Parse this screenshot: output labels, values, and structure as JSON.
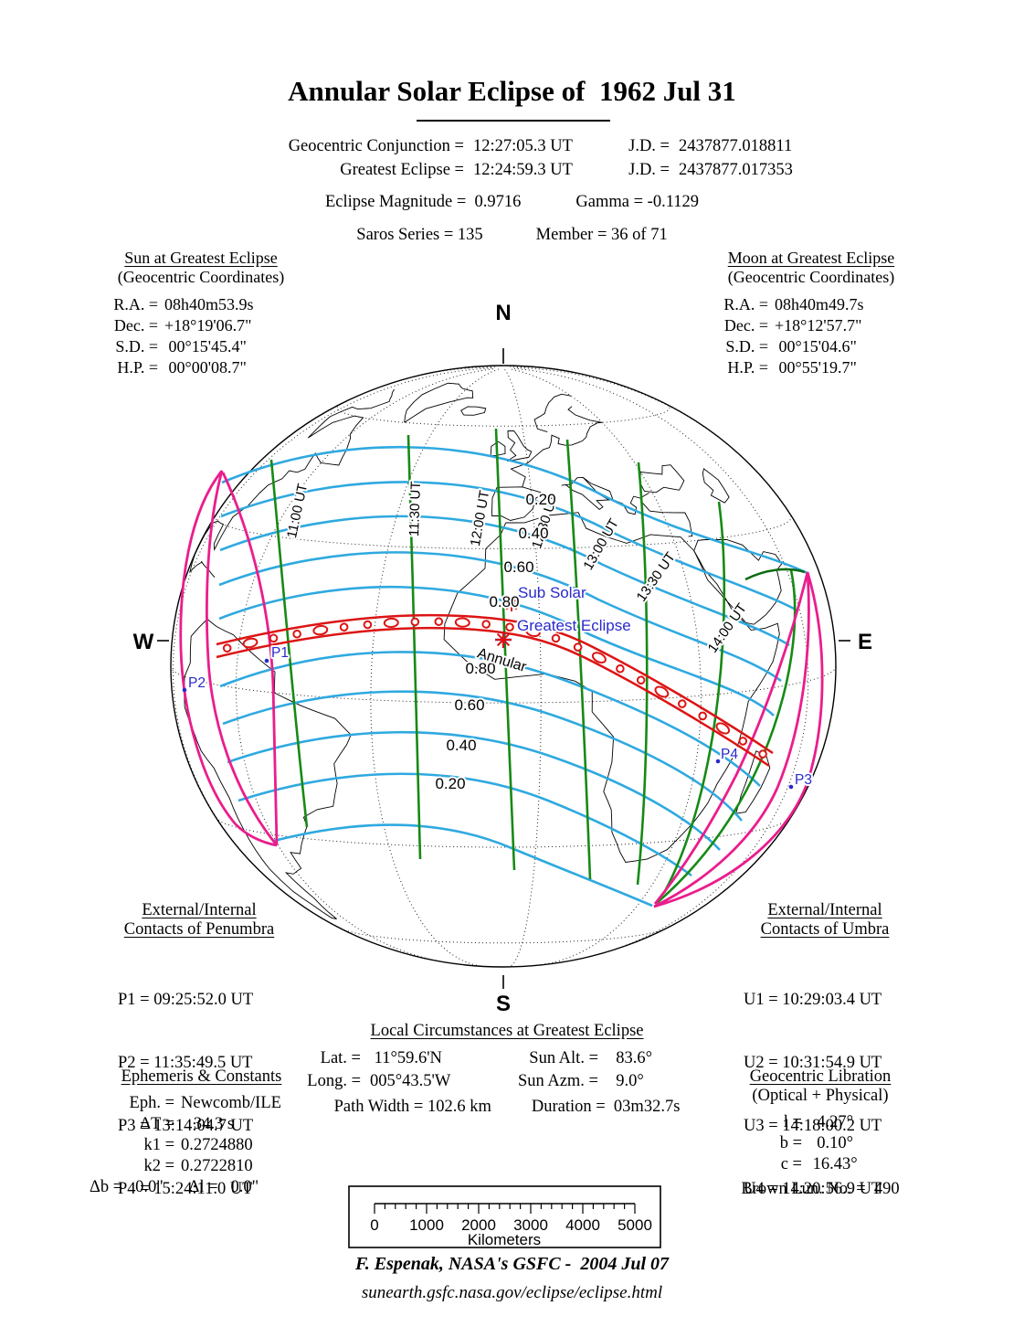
{
  "title": "Annular Solar Eclipse of  1962 Jul 31",
  "header": {
    "conj_label": "Geocentric Conjunction =",
    "conj_value": "12:27:05.3 UT",
    "jd1_label": "J.D. =",
    "jd1_value": "2437877.018811",
    "ge_label": "Greatest Eclipse =",
    "ge_value": "12:24:59.3 UT",
    "jd2_label": "J.D. =",
    "jd2_value": "2437877.017353",
    "magnitude_line": "Eclipse Magnitude =  0.9716",
    "gamma_line": "Gamma = -0.1129",
    "saros_line": "Saros Series = 135",
    "member_line": "Member = 36 of 71"
  },
  "sun": {
    "title": "Sun at Greatest Eclipse",
    "subtitle": "(Geocentric Coordinates)",
    "rows": [
      {
        "l": "R.A. =",
        "v": "08h40m53.9s"
      },
      {
        "l": "Dec. =",
        "v": "+18°19'06.7\""
      },
      {
        "l": "S.D. =",
        "v": " 00°15'45.4\""
      },
      {
        "l": "H.P. =",
        "v": " 00°00'08.7\""
      }
    ]
  },
  "moon": {
    "title": "Moon at Greatest Eclipse",
    "subtitle": "(Geocentric Coordinates)",
    "rows": [
      {
        "l": "R.A. =",
        "v": "08h40m49.7s"
      },
      {
        "l": "Dec. =",
        "v": "+18°12'57.7\""
      },
      {
        "l": "S.D. =",
        "v": " 00°15'04.6\""
      },
      {
        "l": "H.P. =",
        "v": " 00°55'19.7\""
      }
    ]
  },
  "map": {
    "north": "N",
    "south": "S",
    "east": "E",
    "west": "W",
    "sub_solar": "Sub Solar",
    "greatest_eclipse": "Greatest Eclipse",
    "annular": "Annular",
    "p1": "P1",
    "p2": "P2",
    "p3": "P3",
    "p4": "P4",
    "ut_labels": [
      "11:00 UT",
      "11:30 UT",
      "12:00 UT",
      "12:30 UT",
      "13:00 UT",
      "13:30 UT",
      "14:00 UT"
    ],
    "mag_above": [
      "0.20",
      "0.40",
      "0.60",
      "0.80"
    ],
    "mag_below": [
      "0.80",
      "0.60",
      "0.40",
      "0.20"
    ]
  },
  "penumbra": {
    "title1": "External/Internal",
    "title2": "Contacts of Penumbra",
    "rows": [
      "P1 = 09:25:52.0 UT",
      "P2 = 11:35:49.5 UT",
      "P3 = 13:14:04.7 UT",
      "P4 = 15:24:11.0 UT"
    ]
  },
  "umbra": {
    "title1": "External/Internal",
    "title2": "Contacts of Umbra",
    "rows": [
      "U1 = 10:29:03.4 UT",
      "U2 = 10:31:54.9 UT",
      "U3 = 14:18:00.2 UT",
      "U4 = 14:20:56.9 UT"
    ]
  },
  "local": {
    "title": "Local Circumstances at Greatest Eclipse",
    "lat_l": "Lat. =",
    "lat_v": " 11°59.6'N",
    "long_l": "Long. =",
    "long_v": "005°43.5'W",
    "alt_l": "Sun Alt. =",
    "alt_v": "  83.6°",
    "azm_l": "Sun Azm. =",
    "azm_v": "  9.0°",
    "path_width_line": "Path Width = 102.6 km",
    "duration_line": "Duration =  03m32.7s"
  },
  "ephemeris": {
    "title": "Ephemeris & Constants",
    "rows": [
      {
        "l": "Eph. =",
        "v": "Newcomb/ILE"
      },
      {
        "l": "ΔT =",
        "v": "   34.3 s"
      },
      {
        "l": "k1 =",
        "v": "0.2724880"
      },
      {
        "l": "k2 =",
        "v": "0.2722810"
      }
    ],
    "delta_line": "Δb =   0.0\"      Δl =   0.0\""
  },
  "libration": {
    "title": "Geocentric Libration",
    "subtitle": "(Optical + Physical)",
    "rows": [
      {
        "l": "l =",
        "v": "  4.27°"
      },
      {
        "l": "b =",
        "v": "  0.10°"
      },
      {
        "l": "c =",
        "v": " 16.43°"
      }
    ],
    "brown_line": "Brown Lun. No. =  490"
  },
  "scale_bar": {
    "ticks": [
      "0",
      "1000",
      "2000",
      "3000",
      "4000",
      "5000"
    ],
    "unit": "Kilometers"
  },
  "credit": "F. Espenak, NASA's GSFC -  2004 Jul 07",
  "url": "sunearth.gsfc.nasa.gov/eclipse/eclipse.html",
  "colors": {
    "contour_blue": "#2FA9E0",
    "ut_green": "#168A16",
    "path_red": "#DC1414",
    "limit_magenta": "#EA1D8D",
    "label_blue": "#2929CC"
  },
  "chart_data": {
    "type": "map-contour",
    "title": "Annular Solar Eclipse of 1962 Jul 31",
    "projection": "globe centered near 7N 6.5W",
    "magnitude_contours": [
      0.2,
      0.4,
      0.6,
      0.8
    ],
    "ut_contours": [
      "11:00",
      "11:30",
      "12:00",
      "12:30",
      "13:00",
      "13:30",
      "14:00"
    ],
    "central_path": "Annular, from P1 09:25:52.0 UT to P4 15:24:11.0 UT",
    "greatest_eclipse_point": {
      "lat": "11°59.6'N",
      "lon": "005°43.5'W",
      "magnitude": 0.9716,
      "duration": "03m32.7s",
      "path_width_km": 102.6
    }
  }
}
